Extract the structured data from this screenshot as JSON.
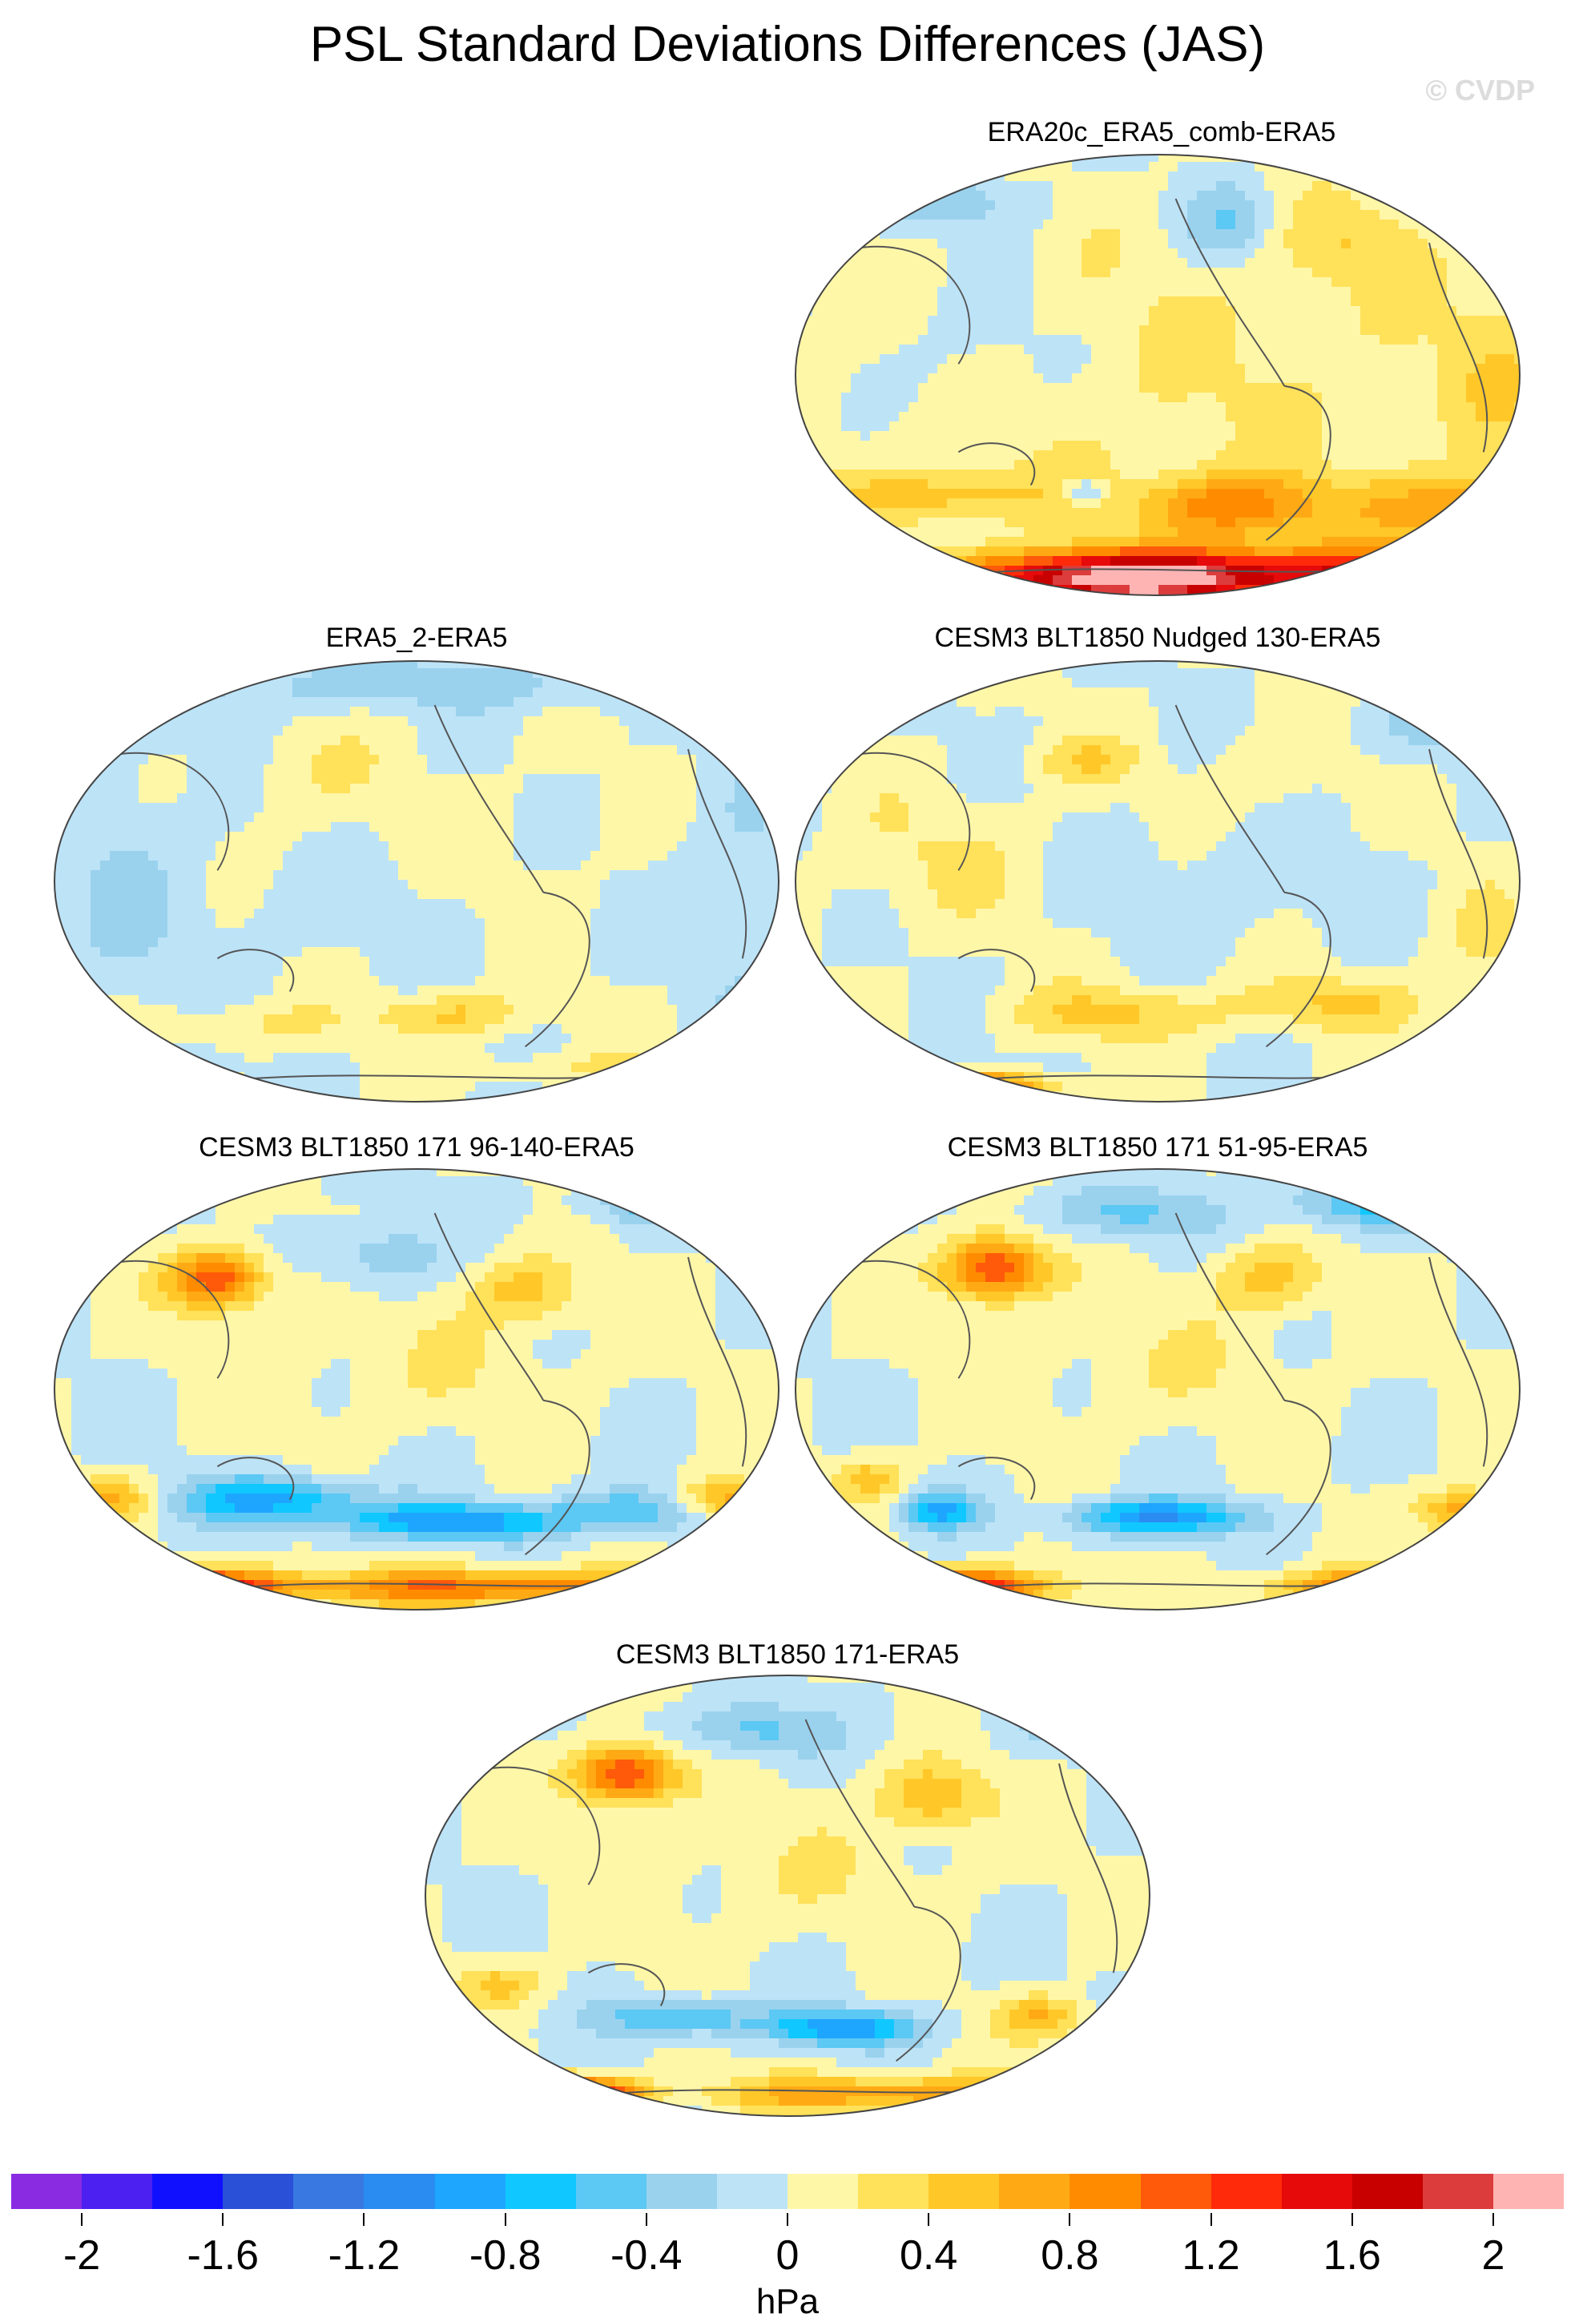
{
  "figure": {
    "title": "PSL Standard Deviations Differences (JAS)",
    "watermark": "© CVDP"
  },
  "panels": [
    {
      "label": "ERA20c_ERA5_comb-ERA5",
      "pattern": "era20c"
    },
    {
      "label": "ERA5_2-ERA5",
      "pattern": "era5_2"
    },
    {
      "label": "CESM3 BLT1850 Nudged 130-ERA5",
      "pattern": "nudged"
    },
    {
      "label": "CESM3 BLT1850 171 96-140-ERA5",
      "pattern": "cesm_a"
    },
    {
      "label": "CESM3 BLT1850 171 51-95-ERA5",
      "pattern": "cesm_b"
    },
    {
      "label": "CESM3 BLT1850 171-ERA5",
      "pattern": "cesm_c"
    }
  ],
  "colorbar": {
    "colors": [
      "#8a2be2",
      "#4b20f0",
      "#1010ff",
      "#2a50d8",
      "#3878e0",
      "#2a8cf0",
      "#1ea6ff",
      "#10c8ff",
      "#5cc8f4",
      "#9ad2ee",
      "#bde3f7",
      "#fff7a8",
      "#ffe15a",
      "#ffc828",
      "#ffaa14",
      "#ff8c00",
      "#ff5a0a",
      "#ff2a0a",
      "#e60a0a",
      "#c80000",
      "#dc3c3c",
      "#ffb4b4"
    ],
    "tick_labels": [
      "-2",
      "-1.6",
      "-1.2",
      "-0.8",
      "-0.4",
      "0",
      "0.4",
      "0.8",
      "1.2",
      "1.6",
      "2"
    ],
    "units": "hPa"
  }
}
